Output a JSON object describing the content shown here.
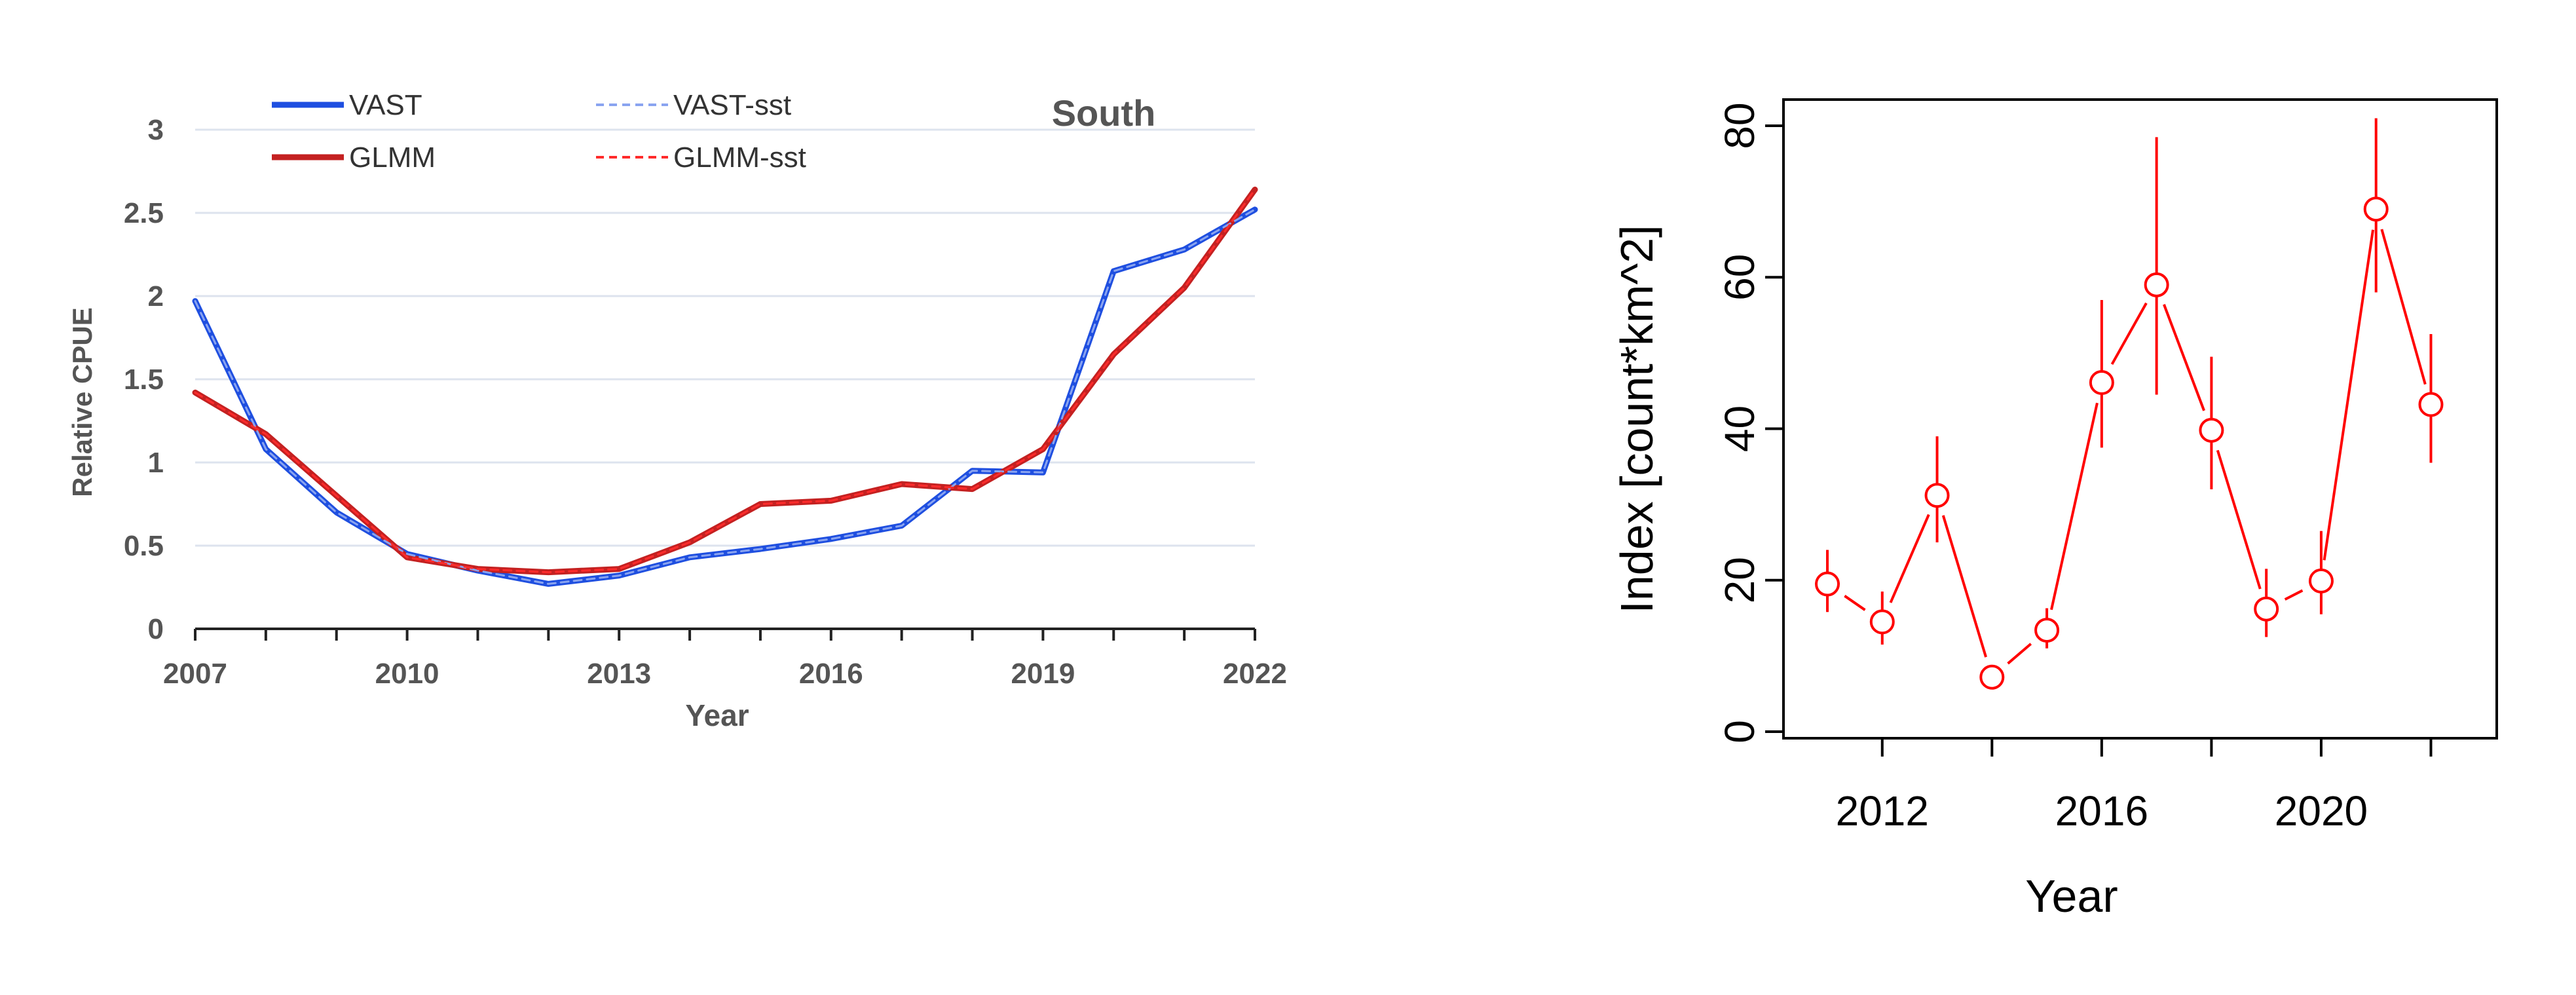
{
  "chart_data": [
    {
      "type": "line",
      "title": "South",
      "xlabel": "Year",
      "ylabel": "Relative CPUE",
      "xlim": [
        2007,
        2022
      ],
      "ylim": [
        0,
        3
      ],
      "x_ticks": [
        "2007",
        "2010",
        "2013",
        "2016",
        "2019",
        "2022"
      ],
      "y_ticks": [
        "0",
        "0.5",
        "1",
        "1.5",
        "2",
        "2.5",
        "3"
      ],
      "grid": true,
      "legend_position": "top",
      "x": [
        2007,
        2008,
        2009,
        2010,
        2011,
        2012,
        2013,
        2014,
        2015,
        2016,
        2017,
        2018,
        2019,
        2020,
        2021,
        2022
      ],
      "series": [
        {
          "name": "VAST",
          "color": "#1f4fe0",
          "style": "solid",
          "values": [
            1.97,
            1.08,
            0.7,
            0.45,
            0.35,
            0.27,
            0.32,
            0.43,
            0.48,
            0.54,
            0.62,
            0.95,
            0.94,
            2.15,
            2.28,
            2.52
          ]
        },
        {
          "name": "VAST-sst",
          "color": "#8aa4f0",
          "style": "dashed",
          "values": [
            1.97,
            1.08,
            0.7,
            0.45,
            0.35,
            0.27,
            0.32,
            0.43,
            0.48,
            0.54,
            0.62,
            0.95,
            0.94,
            2.15,
            2.28,
            2.52
          ]
        },
        {
          "name": "GLMM",
          "color": "#c42121",
          "style": "solid",
          "values": [
            1.42,
            1.17,
            0.8,
            0.43,
            0.36,
            0.34,
            0.36,
            0.52,
            0.75,
            0.77,
            0.87,
            0.84,
            1.08,
            1.65,
            2.05,
            2.64
          ]
        },
        {
          "name": "GLMM-sst",
          "color": "#ff2b2b",
          "style": "dashed",
          "values": [
            1.42,
            1.17,
            0.8,
            0.43,
            0.36,
            0.34,
            0.36,
            0.52,
            0.75,
            0.77,
            0.87,
            0.84,
            1.08,
            1.65,
            2.05,
            2.64
          ]
        }
      ]
    },
    {
      "type": "scatter",
      "xlabel": "Year",
      "ylabel": "Index [count*km^2]",
      "xlim": [
        2010.2,
        2023.2
      ],
      "ylim": [
        0,
        80
      ],
      "x_ticks": [
        "2012",
        "2016",
        "2020"
      ],
      "y_ticks": [
        "0",
        "20",
        "40",
        "60",
        "80"
      ],
      "grid": false,
      "color": "#ff0000",
      "x": [
        2011,
        2012,
        2013,
        2014,
        2015,
        2016,
        2017,
        2018,
        2019,
        2020,
        2021,
        2022
      ],
      "y": [
        19.5,
        14.5,
        31.2,
        7.2,
        13.4,
        46.1,
        59.0,
        39.8,
        16.2,
        19.9,
        69.0,
        43.2
      ],
      "y_lower": [
        15.8,
        11.5,
        25.0,
        6.0,
        11.0,
        37.5,
        44.5,
        32.0,
        12.5,
        15.5,
        58.0,
        35.5
      ],
      "y_upper": [
        24.0,
        18.5,
        39.0,
        8.6,
        16.3,
        57.0,
        78.5,
        49.5,
        21.5,
        26.5,
        81.0,
        52.5
      ]
    }
  ]
}
